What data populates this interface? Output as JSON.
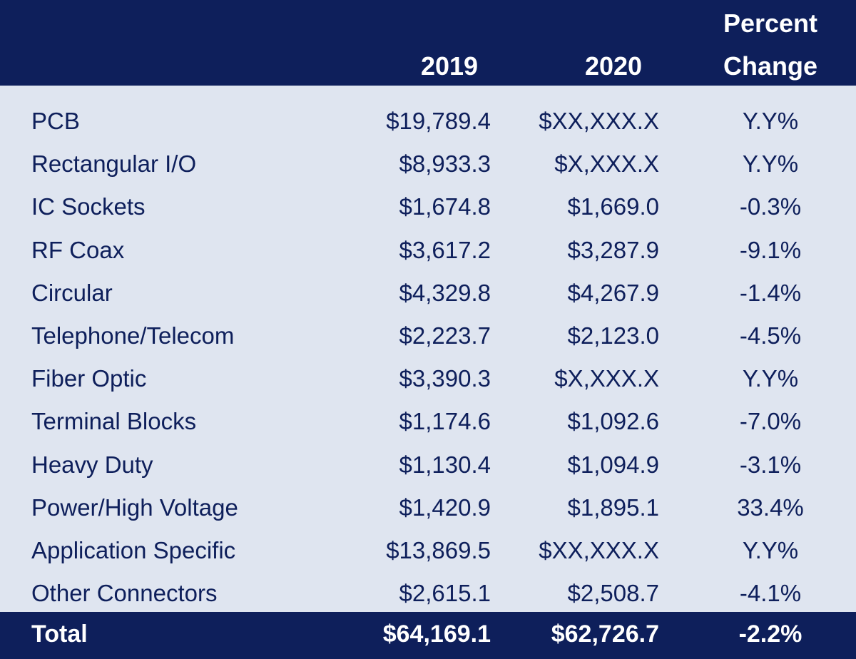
{
  "chart_data": {
    "type": "table",
    "columns": [
      "",
      "2019",
      "2020",
      "Percent Change"
    ],
    "header": {
      "col_2019": "2019",
      "col_2020": "2020",
      "col_pct_line1": "Percent",
      "col_pct_line2": "Change"
    },
    "rows": [
      {
        "label": "PCB",
        "v2019": "$19,789.4",
        "v2020": "$XX,XXX.X",
        "pct": "Y.Y%"
      },
      {
        "label": "Rectangular I/O",
        "v2019": "$8,933.3",
        "v2020": "$X,XXX.X",
        "pct": "Y.Y%"
      },
      {
        "label": "IC Sockets",
        "v2019": "$1,674.8",
        "v2020": "$1,669.0",
        "pct": "-0.3%"
      },
      {
        "label": "RF Coax",
        "v2019": "$3,617.2",
        "v2020": "$3,287.9",
        "pct": "-9.1%"
      },
      {
        "label": "Circular",
        "v2019": "$4,329.8",
        "v2020": "$4,267.9",
        "pct": "-1.4%"
      },
      {
        "label": "Telephone/Telecom",
        "v2019": "$2,223.7",
        "v2020": "$2,123.0",
        "pct": "-4.5%"
      },
      {
        "label": "Fiber Optic",
        "v2019": "$3,390.3",
        "v2020": "$X,XXX.X",
        "pct": "Y.Y%"
      },
      {
        "label": "Terminal Blocks",
        "v2019": "$1,174.6",
        "v2020": "$1,092.6",
        "pct": "-7.0%"
      },
      {
        "label": "Heavy Duty",
        "v2019": "$1,130.4",
        "v2020": "$1,094.9",
        "pct": "-3.1%"
      },
      {
        "label": "Power/High Voltage",
        "v2019": "$1,420.9",
        "v2020": "$1,895.1",
        "pct": "33.4%"
      },
      {
        "label": "Application Specific",
        "v2019": "$13,869.5",
        "v2020": "$XX,XXX.X",
        "pct": "Y.Y%"
      },
      {
        "label": "Other Connectors",
        "v2019": "$2,615.1",
        "v2020": "$2,508.7",
        "pct": "-4.1%"
      }
    ],
    "total": {
      "label": "Total",
      "v2019": "$64,169.1",
      "v2020": "$62,726.7",
      "pct": "-2.2%"
    }
  },
  "colors": {
    "header_bg": "#0e1f5b",
    "body_bg": "#dfe5f0",
    "body_text": "#0e1f5b",
    "header_text": "#ffffff"
  }
}
